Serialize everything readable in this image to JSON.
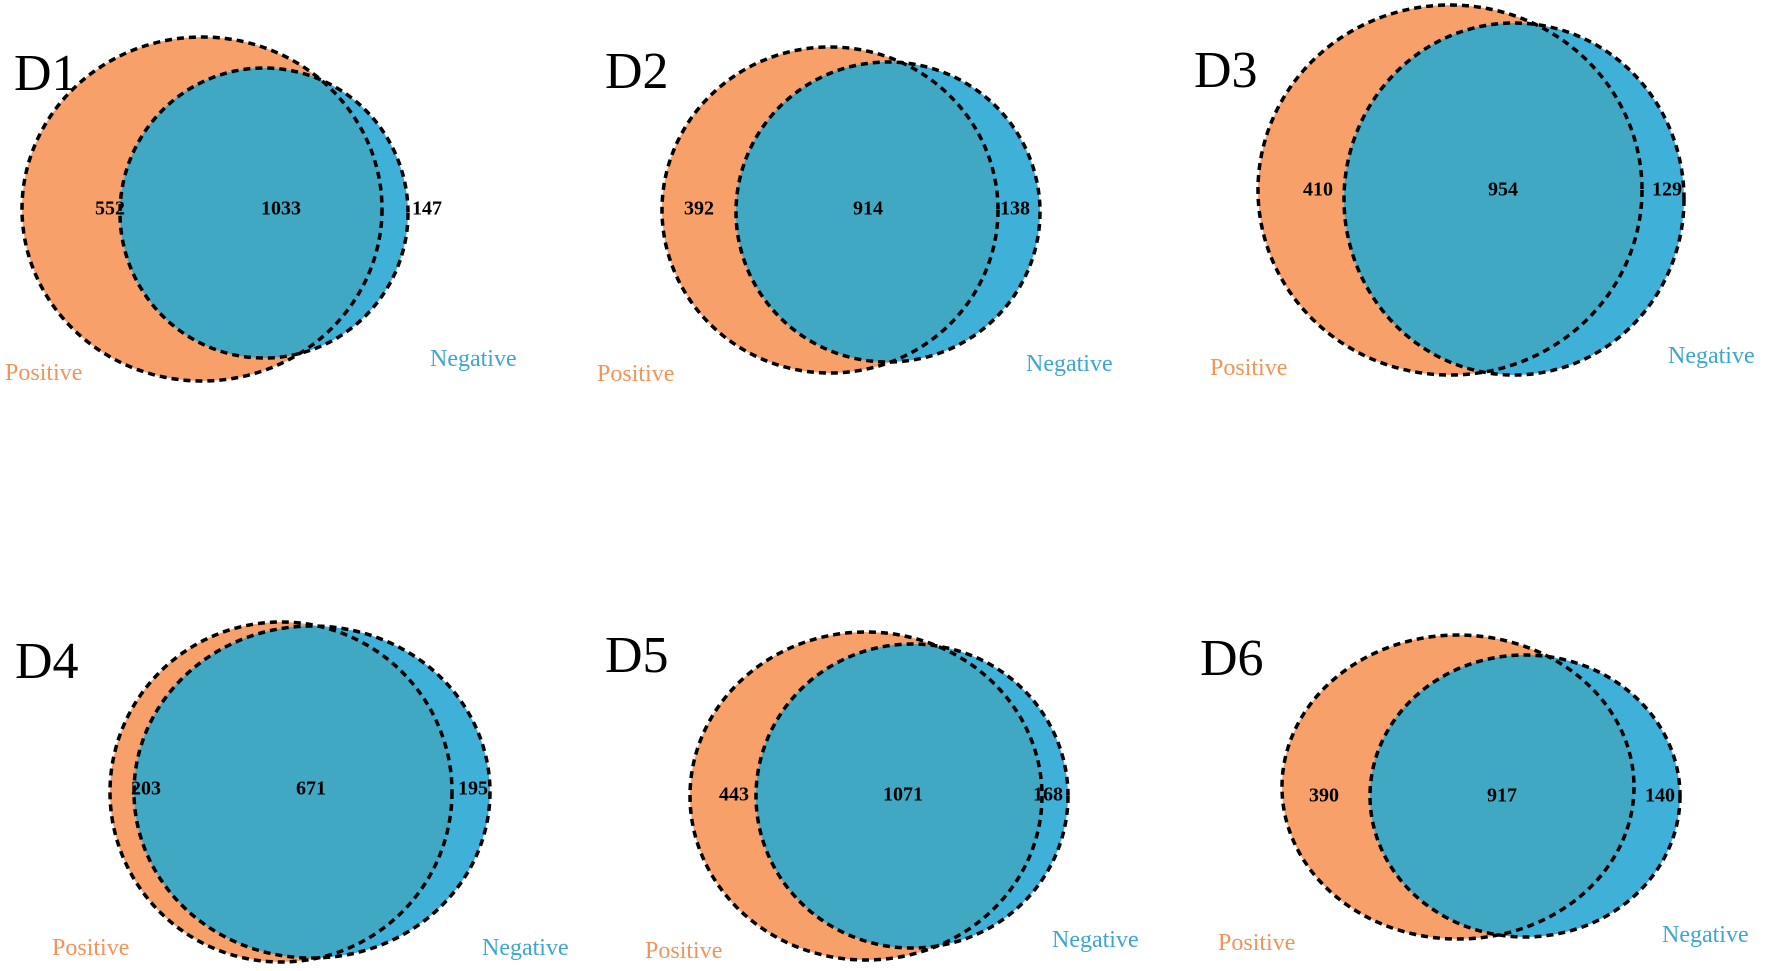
{
  "colors": {
    "positive_fill": "#F8A06A",
    "negative_fill": "#3FB0D8",
    "overlap_fill": "#41A8C4",
    "positive_label": "#F0955A",
    "negative_label": "#3DA6CF"
  },
  "panels": [
    {
      "id": "D1",
      "title": "D1",
      "positive_only": "552",
      "overlap": "1033",
      "negative_only": "147",
      "positive_label": "Positive",
      "negative_label": "Negative"
    },
    {
      "id": "D2",
      "title": "D2",
      "positive_only": "392",
      "overlap": "914",
      "negative_only": "138",
      "positive_label": "Positive",
      "negative_label": "Negative"
    },
    {
      "id": "D3",
      "title": "D3",
      "positive_only": "410",
      "overlap": "954",
      "negative_only": "129",
      "positive_label": "Positive",
      "negative_label": "Negative"
    },
    {
      "id": "D4",
      "title": "D4",
      "positive_only": "203",
      "overlap": "671",
      "negative_only": "195",
      "positive_label": "Positive",
      "negative_label": "Negative"
    },
    {
      "id": "D5",
      "title": "D5",
      "positive_only": "443",
      "overlap": "1071",
      "negative_only": "168",
      "positive_label": "Positive",
      "negative_label": "Negative"
    },
    {
      "id": "D6",
      "title": "D6",
      "positive_only": "390",
      "overlap": "917",
      "negative_only": "140",
      "positive_label": "Positive",
      "negative_label": "Negative"
    }
  ]
}
